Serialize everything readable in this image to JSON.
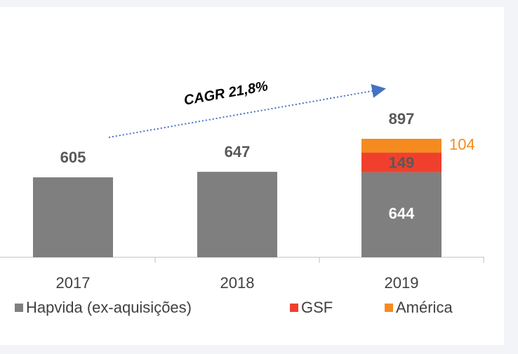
{
  "chart_data": {
    "type": "stacked_bar",
    "categories": [
      "2017",
      "2018",
      "2019"
    ],
    "series": [
      {
        "name": "Hapvida (ex-aquisições)",
        "color": "#7f7f7f",
        "values": [
          605,
          647,
          644
        ]
      },
      {
        "name": "GSF",
        "color": "#f0402d",
        "values": [
          null,
          null,
          149
        ]
      },
      {
        "name": "América",
        "color": "#f58b1f",
        "values": [
          null,
          null,
          104
        ]
      }
    ],
    "totals": [
      605,
      647,
      897
    ],
    "annotation": "CAGR 21,8%"
  }
}
